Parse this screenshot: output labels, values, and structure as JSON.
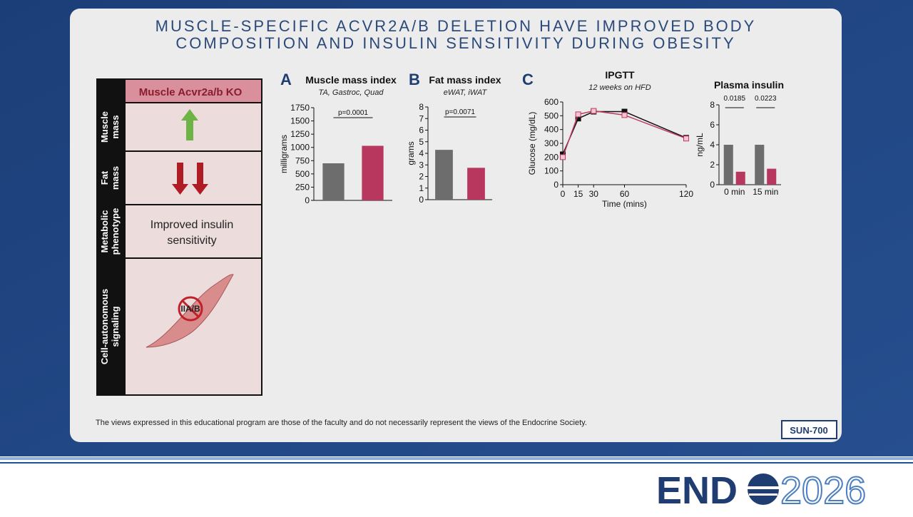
{
  "title": [
    "MUSCLE-SPECIFIC ACVR2A/B DELETION HAVE IMPROVED BODY",
    "COMPOSITION AND INSULIN SENSITIVITY DURING OBESITY"
  ],
  "summary": {
    "header": "Muscle Acvr2a/b KO",
    "rows": [
      {
        "label": [
          "Muscle",
          "mass"
        ]
      },
      {
        "label": [
          "Fat",
          "mass"
        ]
      },
      {
        "label": [
          "Metabolic",
          "phenotype"
        ],
        "text": [
          "Improved insulin",
          "sensitivity"
        ]
      },
      {
        "label": [
          "Cell-autonomous",
          "signaling"
        ],
        "text": [
          "IIA/B"
        ]
      }
    ]
  },
  "chart_data": [
    {
      "type": "bar",
      "panel": "A",
      "title": "Muscle mass index",
      "subtitle": "TA, Gastroc, Quad",
      "y_label": "milligrams",
      "categories": [
        null,
        null
      ],
      "values": [
        700,
        1030
      ],
      "colors": [
        "#6d6d6d",
        "#b8375f"
      ],
      "ylim": [
        0,
        1750
      ],
      "yticks": [
        0,
        250,
        500,
        750,
        1000,
        1250,
        1500,
        1750
      ],
      "annotations": [
        "p=0.0001"
      ]
    },
    {
      "type": "bar",
      "panel": "B",
      "title": "Fat mass index",
      "subtitle": "eWAT, iWAT",
      "y_label": "grams",
      "categories": [
        null,
        null
      ],
      "values": [
        4.3,
        2.75
      ],
      "colors": [
        "#6d6d6d",
        "#b8375f"
      ],
      "ylim": [
        0,
        8
      ],
      "yticks": [
        0,
        1,
        2,
        3,
        4,
        5,
        6,
        7,
        8
      ],
      "annotations": [
        "p=0.0071"
      ]
    },
    {
      "type": "line",
      "panel": "C",
      "title": "IPGTT",
      "subtitle": "12 weeks on HFD",
      "y_label": "Glucose (mg/dL)",
      "x_label": "Time (mins)",
      "x": [
        0,
        15,
        30,
        60,
        120
      ],
      "xlim": [
        0,
        120
      ],
      "xticks": [
        0,
        15,
        30,
        60,
        120
      ],
      "series": [
        {
          "color": "#111111",
          "values": [
            220,
            480,
            530,
            530,
            340
          ]
        },
        {
          "color": "#c0395f",
          "values": [
            200,
            510,
            535,
            505,
            335
          ]
        }
      ],
      "ylim": [
        0,
        600
      ],
      "yticks": [
        0,
        100,
        200,
        300,
        400,
        500,
        600
      ]
    },
    {
      "type": "bar",
      "title": "Plasma insulin",
      "y_label": "ng/mL",
      "categories": [
        "0 min",
        "15 min"
      ],
      "series": [
        {
          "color": "#6d6d6d",
          "values": [
            4.0,
            4.0
          ]
        },
        {
          "color": "#b8375f",
          "values": [
            1.3,
            1.6
          ]
        }
      ],
      "ylim": [
        0,
        8
      ],
      "yticks": [
        0,
        2,
        4,
        6,
        8
      ],
      "annotations": [
        "0.0185",
        "0.0223"
      ]
    }
  ],
  "footer": {
    "disclaimer": "The views expressed in this educational program are those of the faculty and do not necessarily represent the views of the Endocrine Society.",
    "code": "SUN-700"
  },
  "logo": {
    "left": "END",
    "right": "2026"
  }
}
